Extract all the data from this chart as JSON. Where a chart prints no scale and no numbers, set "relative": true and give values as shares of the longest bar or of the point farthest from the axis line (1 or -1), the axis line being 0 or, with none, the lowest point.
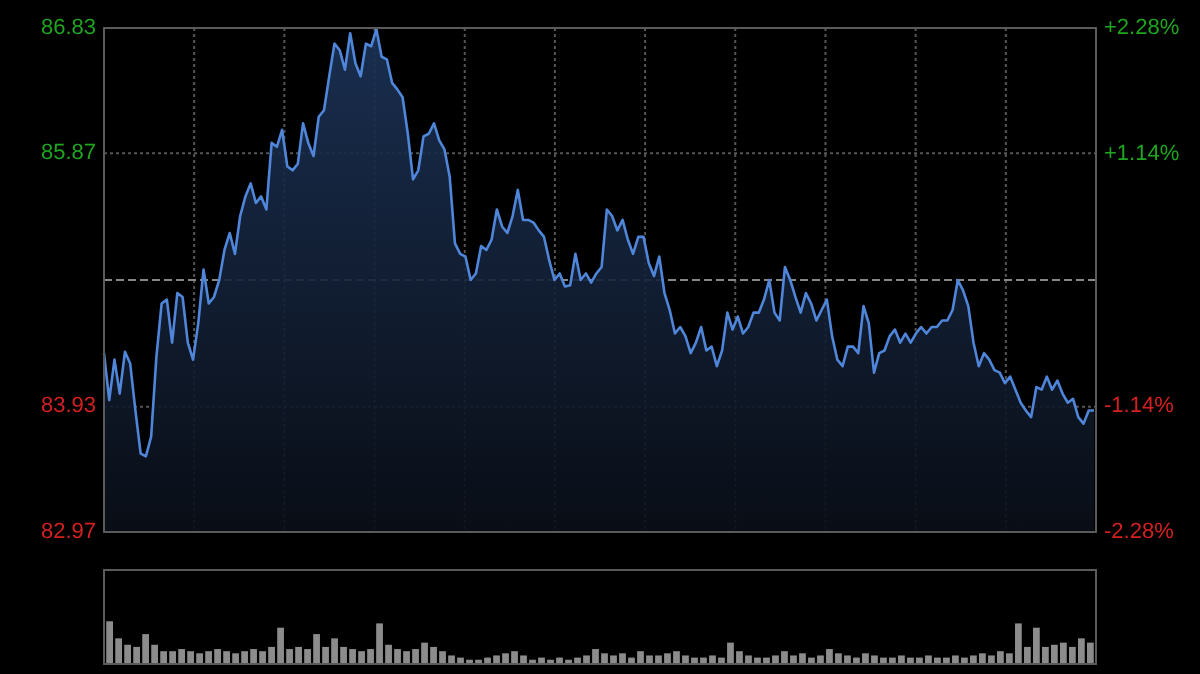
{
  "chart_data": [
    {
      "type": "area",
      "ylim": [
        82.97,
        86.83
      ],
      "y2lim": [
        -2.28,
        2.28
      ],
      "categories": [
        null,
        null,
        null,
        null,
        null,
        null,
        null,
        null,
        null,
        null,
        null,
        null,
        null,
        null,
        null,
        null,
        null,
        null,
        null,
        null,
        null,
        null,
        null,
        null,
        null,
        null,
        null,
        null,
        null,
        null,
        null,
        null,
        null,
        null,
        null,
        null,
        null,
        null,
        null,
        null,
        null,
        null,
        null,
        null,
        null,
        null,
        null,
        null,
        null,
        null,
        null,
        null,
        null,
        null,
        null,
        null,
        null,
        null,
        null,
        null,
        null,
        null,
        null,
        null,
        null,
        null,
        null,
        null,
        null,
        null,
        null,
        null,
        null,
        null,
        null,
        null,
        null,
        null,
        null,
        null,
        null,
        null,
        null,
        null,
        null,
        null,
        null,
        null,
        null,
        null,
        null,
        null,
        null,
        null,
        null,
        null,
        null,
        null,
        null,
        null,
        null,
        null,
        null,
        null,
        null,
        null,
        null,
        null,
        null,
        null,
        null,
        null,
        null,
        null,
        null,
        null,
        null,
        null,
        null,
        null,
        null,
        null,
        null,
        null,
        null,
        null,
        null,
        null,
        null,
        null,
        null,
        null,
        null,
        null,
        null,
        null,
        null,
        null,
        null,
        null,
        null,
        null,
        null,
        null,
        null,
        null,
        null,
        null,
        null,
        null,
        null,
        null,
        null,
        null,
        null,
        null,
        null,
        null,
        null,
        null,
        null,
        null,
        null,
        null,
        null,
        null,
        null,
        null,
        null,
        null,
        null,
        null,
        null,
        null,
        null,
        null,
        null,
        null,
        null,
        null,
        null,
        null,
        null,
        null,
        null,
        null,
        null,
        null,
        null,
        null
      ],
      "yticks": [
        82.97,
        83.93,
        85.87,
        86.83
      ],
      "y2ticks": [
        {
          "value": -2.28,
          "label": "-2.28%"
        },
        {
          "value": -1.14,
          "label": "-1.14%"
        },
        {
          "value": 1.14,
          "label": "+1.14%"
        },
        {
          "value": 2.28,
          "label": "+2.28%"
        }
      ],
      "tick_labels": "y",
      "grid": true,
      "ref_lines": [
        {
          "axis": "y",
          "value": 84.9,
          "line_style": "dashed"
        }
      ],
      "series": [
        {
          "color": "#4f86d9",
          "values": [
            84.34,
            83.98,
            84.29,
            84.03,
            84.35,
            84.26,
            83.9,
            83.57,
            83.55,
            83.7,
            84.31,
            84.72,
            84.75,
            84.42,
            84.8,
            84.77,
            84.42,
            84.29,
            84.57,
            84.98,
            84.72,
            84.77,
            84.9,
            85.13,
            85.26,
            85.1,
            85.39,
            85.54,
            85.64,
            85.49,
            85.54,
            85.44,
            85.95,
            85.92,
            86.05,
            85.77,
            85.74,
            85.79,
            86.1,
            85.95,
            85.85,
            86.15,
            86.2,
            86.46,
            86.71,
            86.66,
            86.51,
            86.79,
            86.56,
            86.46,
            86.71,
            86.69,
            86.82,
            86.61,
            86.59,
            86.41,
            86.36,
            86.3,
            86.02,
            85.67,
            85.74,
            86.0,
            86.02,
            86.1,
            85.97,
            85.9,
            85.69,
            85.18,
            85.1,
            85.08,
            84.9,
            84.95,
            85.16,
            85.13,
            85.21,
            85.44,
            85.31,
            85.26,
            85.39,
            85.59,
            85.36,
            85.36,
            85.34,
            85.28,
            85.23,
            85.05,
            84.9,
            84.95,
            84.85,
            84.86,
            85.1,
            84.9,
            84.95,
            84.88,
            84.95,
            85.0,
            85.44,
            85.39,
            85.28,
            85.36,
            85.21,
            85.1,
            85.23,
            85.23,
            85.03,
            84.93,
            85.08,
            84.8,
            84.67,
            84.49,
            84.54,
            84.47,
            84.34,
            84.42,
            84.54,
            84.36,
            84.39,
            84.24,
            84.36,
            84.65,
            84.52,
            84.62,
            84.49,
            84.54,
            84.65,
            84.65,
            84.75,
            84.9,
            84.65,
            84.59,
            85.0,
            84.9,
            84.77,
            84.65,
            84.8,
            84.72,
            84.59,
            84.67,
            84.75,
            84.47,
            84.29,
            84.24,
            84.39,
            84.39,
            84.34,
            84.7,
            84.57,
            84.19,
            84.34,
            84.36,
            84.47,
            84.52,
            84.42,
            84.49,
            84.42,
            84.49,
            84.54,
            84.49,
            84.54,
            84.54,
            84.59,
            84.59,
            84.67,
            84.9,
            84.82,
            84.7,
            84.42,
            84.24,
            84.34,
            84.29,
            84.21,
            84.19,
            84.11,
            84.16,
            84.06,
            83.96,
            83.9,
            83.85,
            84.08,
            84.06,
            84.16,
            84.06,
            84.13,
            84.03,
            83.96,
            83.99,
            83.85,
            83.8,
            83.9,
            83.9
          ]
        }
      ]
    },
    {
      "type": "bar",
      "relative": true,
      "tick_labels": false,
      "color": "#8c8c8c",
      "categories": [
        null,
        null,
        null,
        null,
        null,
        null,
        null,
        null,
        null,
        null,
        null,
        null,
        null,
        null,
        null,
        null,
        null,
        null,
        null,
        null,
        null,
        null,
        null,
        null,
        null,
        null,
        null,
        null,
        null,
        null,
        null,
        null,
        null,
        null,
        null,
        null,
        null,
        null,
        null,
        null,
        null,
        null,
        null,
        null,
        null,
        null,
        null,
        null,
        null,
        null,
        null,
        null,
        null,
        null,
        null,
        null,
        null,
        null,
        null,
        null,
        null,
        null,
        null,
        null,
        null,
        null,
        null,
        null,
        null,
        null,
        null,
        null,
        null,
        null,
        null,
        null,
        null,
        null,
        null,
        null,
        null,
        null,
        null,
        null,
        null,
        null,
        null,
        null,
        null,
        null,
        null,
        null,
        null,
        null,
        null,
        null,
        null,
        null,
        null,
        null,
        null,
        null,
        null,
        null,
        null,
        null,
        null,
        null,
        null,
        null
      ],
      "values": [
        1.0,
        0.6,
        0.45,
        0.4,
        0.7,
        0.45,
        0.3,
        0.3,
        0.35,
        0.3,
        0.25,
        0.3,
        0.35,
        0.3,
        0.25,
        0.3,
        0.35,
        0.3,
        0.4,
        0.85,
        0.35,
        0.4,
        0.35,
        0.7,
        0.4,
        0.6,
        0.4,
        0.35,
        0.3,
        0.35,
        0.95,
        0.45,
        0.35,
        0.3,
        0.35,
        0.5,
        0.4,
        0.3,
        0.2,
        0.15,
        0.1,
        0.1,
        0.15,
        0.2,
        0.25,
        0.3,
        0.2,
        0.1,
        0.15,
        0.1,
        0.15,
        0.1,
        0.15,
        0.2,
        0.35,
        0.25,
        0.2,
        0.25,
        0.15,
        0.3,
        0.2,
        0.2,
        0.25,
        0.3,
        0.2,
        0.15,
        0.15,
        0.2,
        0.15,
        0.5,
        0.3,
        0.2,
        0.15,
        0.15,
        0.2,
        0.3,
        0.2,
        0.25,
        0.15,
        0.2,
        0.35,
        0.25,
        0.2,
        0.15,
        0.25,
        0.2,
        0.15,
        0.15,
        0.2,
        0.15,
        0.15,
        0.2,
        0.15,
        0.15,
        0.2,
        0.15,
        0.2,
        0.25,
        0.2,
        0.3,
        0.25,
        0.95,
        0.4,
        0.85,
        0.4,
        0.45,
        0.5,
        0.4,
        0.6,
        0.5
      ]
    }
  ]
}
